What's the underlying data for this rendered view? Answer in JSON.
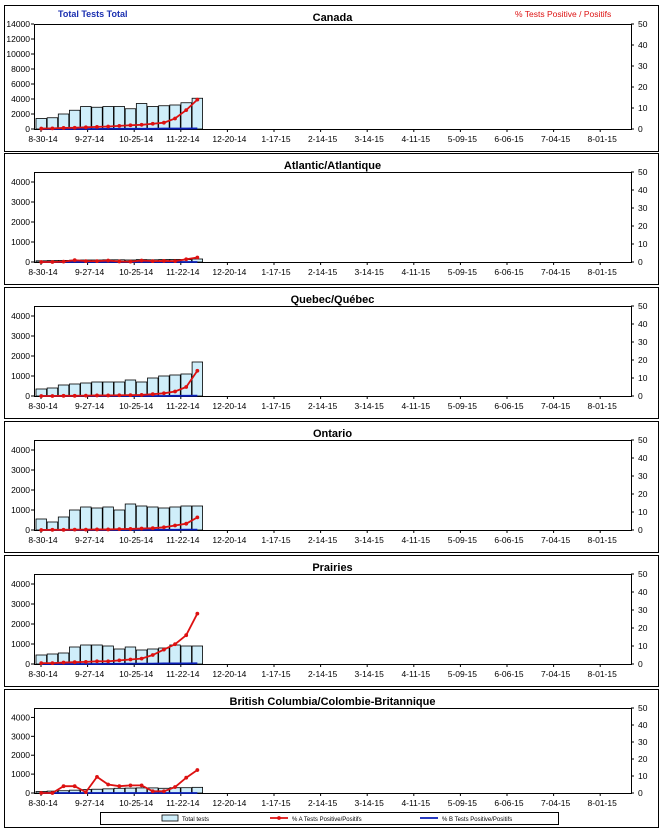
{
  "header": {
    "left_label": "Total Tests Total",
    "right_label": "% Tests Positive / Positifs"
  },
  "x_ticks": [
    "8-30-14",
    "9-27-14",
    "10-25-14",
    "11-22-14",
    "12-20-14",
    "1-17-15",
    "2-14-15",
    "3-14-15",
    "4-11-15",
    "5-09-15",
    "6-06-15",
    "7-04-15",
    "8-01-15"
  ],
  "colors": {
    "bar_fill": "#cfeefa",
    "bar_stroke": "#000000",
    "series_a": "#dd1111",
    "series_b": "#0a1fb8",
    "header_left": "#1a2fb0",
    "header_right": "#dd1111"
  },
  "legend": {
    "total": "Total tests",
    "series_a": "% A Tests Positive/Positifs",
    "series_b": "% B Tests Positive/Positifs"
  },
  "chart_data": [
    {
      "type": "bar+line",
      "title": "Canada",
      "y_ticks": [
        0,
        2000,
        4000,
        6000,
        8000,
        10000,
        12000,
        14000
      ],
      "y2_ticks": [
        0,
        10,
        20,
        30,
        40,
        50
      ],
      "ylim": [
        0,
        14000
      ],
      "y2lim": [
        0,
        50
      ],
      "total_tests": [
        1400,
        1500,
        2000,
        2500,
        3000,
        2900,
        3000,
        3000,
        2700,
        3400,
        3000,
        3100,
        3200,
        3500,
        4100
      ],
      "pct_a": [
        0.2,
        0.3,
        0.5,
        0.6,
        0.8,
        1,
        1.2,
        1.5,
        1.8,
        2,
        2.5,
        3,
        5,
        9,
        14
      ],
      "pct_b": [
        0,
        0,
        0,
        0,
        0,
        0,
        0.1,
        0.1,
        0.1,
        0.1,
        0.1,
        0.2,
        0.2,
        0.2,
        0.3
      ]
    },
    {
      "type": "bar+line",
      "title": "Atlantic/Atlantique",
      "y_ticks": [
        0,
        1000,
        2000,
        3000,
        4000
      ],
      "y2_ticks": [
        0,
        10,
        20,
        30,
        40,
        50
      ],
      "ylim": [
        0,
        4500
      ],
      "y2lim": [
        0,
        50
      ],
      "total_tests": [
        60,
        70,
        80,
        90,
        100,
        100,
        110,
        110,
        100,
        120,
        110,
        120,
        130,
        120,
        150
      ],
      "pct_a": [
        0,
        0,
        0.2,
        1,
        0.5,
        0.5,
        0.8,
        0.3,
        0.2,
        0.8,
        0.5,
        0.6,
        0.5,
        1.5,
        2.5
      ],
      "pct_b": [
        0,
        0,
        0,
        0,
        0,
        0,
        0,
        0,
        0,
        0,
        0,
        0,
        0,
        0,
        0
      ]
    },
    {
      "type": "bar+line",
      "title": "Quebec/Québec",
      "y_ticks": [
        0,
        1000,
        2000,
        3000,
        4000
      ],
      "y2_ticks": [
        0,
        10,
        20,
        30,
        40,
        50
      ],
      "ylim": [
        0,
        4500
      ],
      "y2lim": [
        0,
        50
      ],
      "total_tests": [
        350,
        400,
        550,
        600,
        650,
        700,
        700,
        700,
        800,
        700,
        900,
        1000,
        1050,
        1100,
        1700
      ],
      "pct_a": [
        0,
        0,
        0.1,
        0.1,
        0.2,
        0.3,
        0.3,
        0.4,
        0.5,
        0.6,
        1,
        1.5,
        2.5,
        5,
        14
      ],
      "pct_b": [
        0,
        0,
        0,
        0,
        0,
        0,
        0,
        0,
        0,
        0,
        0,
        0,
        0.1,
        0.1,
        0.2
      ]
    },
    {
      "type": "bar+line",
      "title": "Ontario",
      "y_ticks": [
        0,
        1000,
        2000,
        3000,
        4000
      ],
      "y2_ticks": [
        0,
        10,
        20,
        30,
        40,
        50
      ],
      "ylim": [
        0,
        4500
      ],
      "y2lim": [
        0,
        50
      ],
      "total_tests": [
        550,
        400,
        650,
        1000,
        1150,
        1100,
        1150,
        1000,
        1300,
        1200,
        1150,
        1100,
        1150,
        1200,
        1200
      ],
      "pct_a": [
        0,
        0.1,
        0.1,
        0.2,
        0.2,
        0.3,
        0.3,
        0.5,
        0.6,
        0.8,
        1,
        1.5,
        2.5,
        3.5,
        7
      ],
      "pct_b": [
        0,
        0,
        0,
        0,
        0,
        0,
        0,
        0,
        0.1,
        0.1,
        0.1,
        0.1,
        0.1,
        0.2,
        0.2
      ]
    },
    {
      "type": "bar+line",
      "title": "Prairies",
      "y_ticks": [
        0,
        1000,
        2000,
        3000,
        4000
      ],
      "y2_ticks": [
        0,
        10,
        20,
        30,
        40,
        50
      ],
      "ylim": [
        0,
        4500
      ],
      "y2lim": [
        0,
        50
      ],
      "total_tests": [
        450,
        500,
        550,
        850,
        950,
        950,
        900,
        750,
        850,
        700,
        750,
        800,
        950,
        900,
        900
      ],
      "pct_a": [
        0.5,
        0.5,
        0.8,
        1,
        1.2,
        1.5,
        1.5,
        2,
        2.5,
        3,
        5,
        8,
        11,
        16,
        28
      ],
      "pct_b": [
        0,
        0,
        0,
        0,
        0,
        0,
        0.1,
        0.1,
        0.2,
        0.2,
        0.2,
        0.3,
        0.3,
        0.3,
        0.4
      ]
    },
    {
      "type": "bar+line",
      "title": "British Columbia/Colombie-Britannique",
      "y_ticks": [
        0,
        1000,
        2000,
        3000,
        4000
      ],
      "y2_ticks": [
        0,
        10,
        20,
        30,
        40,
        50
      ],
      "ylim": [
        0,
        4500
      ],
      "y2lim": [
        0,
        50
      ],
      "total_tests": [
        80,
        100,
        120,
        150,
        180,
        200,
        220,
        250,
        260,
        270,
        270,
        250,
        280,
        280,
        300
      ],
      "pct_a": [
        0,
        0,
        4,
        4,
        0.5,
        9.5,
        5,
        4,
        4.5,
        4.5,
        1,
        1,
        3.5,
        9,
        13.5
      ],
      "pct_b": [
        0,
        0,
        0,
        0,
        0,
        0,
        0,
        0,
        0,
        0,
        0,
        0,
        0,
        0,
        0
      ]
    }
  ]
}
